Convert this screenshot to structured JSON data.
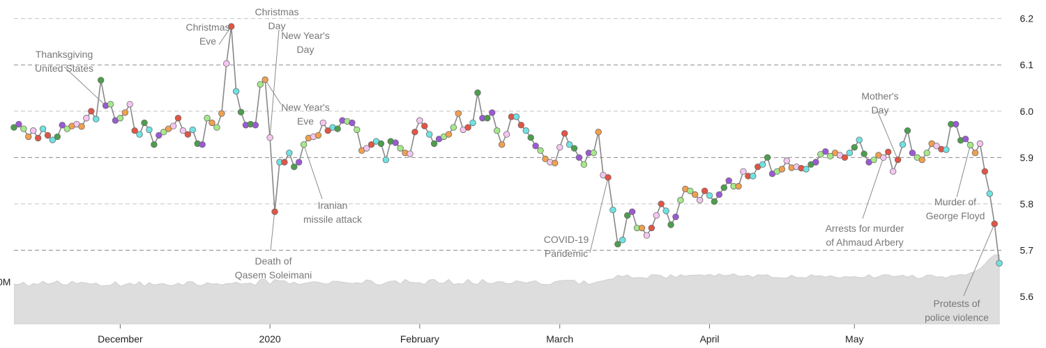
{
  "chart_data": {
    "type": "line",
    "y_ticks": [
      5.6,
      5.7,
      5.8,
      5.9,
      6.0,
      6.1,
      6.2
    ],
    "y_tick_labels": [
      "5.6",
      "5.7",
      "5.8",
      "5.9",
      "6.0",
      "6.1",
      "6.2"
    ],
    "ylim": [
      5.54,
      6.24
    ],
    "axis_fragment_label": "0M",
    "x_ticks": [
      {
        "date": "2019-12-01",
        "label": "December"
      },
      {
        "date": "2020-01-01",
        "label": "2020"
      },
      {
        "date": "2020-02-01",
        "label": "February"
      },
      {
        "date": "2020-03-01",
        "label": "March"
      },
      {
        "date": "2020-04-01",
        "label": "April"
      },
      {
        "date": "2020-05-01",
        "label": "May"
      }
    ],
    "xlim": [
      "2019-11-09",
      "2020-06-01"
    ],
    "grid": true,
    "line_color": "#888888",
    "area_color": "#dddddd",
    "point_colors": [
      "#4c9e4c",
      "#e05545",
      "#f0a050",
      "#9b59d6",
      "#6fe3e3",
      "#f5c6f0",
      "#a6e88a"
    ],
    "series": [
      {
        "x": [
          "2019-11-09",
          "2019-11-10",
          "2019-11-11",
          "2019-11-12",
          "2019-11-13",
          "2019-11-14",
          "2019-11-15",
          "2019-11-16",
          "2019-11-17",
          "2019-11-18",
          "2019-11-19",
          "2019-11-20",
          "2019-11-21",
          "2019-11-22",
          "2019-11-23",
          "2019-11-24",
          "2019-11-25",
          "2019-11-26",
          "2019-11-27",
          "2019-11-28",
          "2019-11-29",
          "2019-11-30",
          "2019-12-01",
          "2019-12-02",
          "2019-12-03",
          "2019-12-04",
          "2019-12-05",
          "2019-12-06",
          "2019-12-07",
          "2019-12-08",
          "2019-12-09",
          "2019-12-10",
          "2019-12-11",
          "2019-12-12",
          "2019-12-13",
          "2019-12-14",
          "2019-12-15",
          "2019-12-16",
          "2019-12-17",
          "2019-12-18",
          "2019-12-19",
          "2019-12-20",
          "2019-12-21",
          "2019-12-22",
          "2019-12-23",
          "2019-12-24",
          "2019-12-25",
          "2019-12-26",
          "2019-12-27",
          "2019-12-28",
          "2019-12-29",
          "2019-12-30",
          "2019-12-31",
          "2020-01-01",
          "2020-01-02",
          "2020-01-03",
          "2020-01-04",
          "2020-01-05",
          "2020-01-06",
          "2020-01-07",
          "2020-01-08",
          "2020-01-09",
          "2020-01-10",
          "2020-01-11",
          "2020-01-12",
          "2020-01-13",
          "2020-01-14",
          "2020-01-15",
          "2020-01-16",
          "2020-01-17",
          "2020-01-18",
          "2020-01-19",
          "2020-01-20",
          "2020-01-21",
          "2020-01-22",
          "2020-01-23",
          "2020-01-24",
          "2020-01-25",
          "2020-01-26",
          "2020-01-27",
          "2020-01-28",
          "2020-01-29",
          "2020-01-30",
          "2020-01-31",
          "2020-02-01",
          "2020-02-02",
          "2020-02-03",
          "2020-02-04",
          "2020-02-05",
          "2020-02-06",
          "2020-02-07",
          "2020-02-08",
          "2020-02-09",
          "2020-02-10",
          "2020-02-11",
          "2020-02-12",
          "2020-02-13",
          "2020-02-14",
          "2020-02-15",
          "2020-02-16",
          "2020-02-17",
          "2020-02-18",
          "2020-02-19",
          "2020-02-20",
          "2020-02-21",
          "2020-02-22",
          "2020-02-23",
          "2020-02-24",
          "2020-02-25",
          "2020-02-26",
          "2020-02-27",
          "2020-02-28",
          "2020-02-29",
          "2020-03-01",
          "2020-03-02",
          "2020-03-03",
          "2020-03-04",
          "2020-03-05",
          "2020-03-06",
          "2020-03-07",
          "2020-03-08",
          "2020-03-09",
          "2020-03-10",
          "2020-03-11",
          "2020-03-12",
          "2020-03-13",
          "2020-03-14",
          "2020-03-15",
          "2020-03-16",
          "2020-03-17",
          "2020-03-18",
          "2020-03-19",
          "2020-03-20",
          "2020-03-21",
          "2020-03-22",
          "2020-03-23",
          "2020-03-24",
          "2020-03-25",
          "2020-03-26",
          "2020-03-27",
          "2020-03-28",
          "2020-03-29",
          "2020-03-30",
          "2020-03-31",
          "2020-04-01",
          "2020-04-02",
          "2020-04-03",
          "2020-04-04",
          "2020-04-05",
          "2020-04-06",
          "2020-04-07",
          "2020-04-08",
          "2020-04-09",
          "2020-04-10",
          "2020-04-11",
          "2020-04-12",
          "2020-04-13",
          "2020-04-14",
          "2020-04-15",
          "2020-04-16",
          "2020-04-17",
          "2020-04-18",
          "2020-04-19",
          "2020-04-20",
          "2020-04-21",
          "2020-04-22",
          "2020-04-23",
          "2020-04-24",
          "2020-04-25",
          "2020-04-26",
          "2020-04-27",
          "2020-04-28",
          "2020-04-29",
          "2020-04-30",
          "2020-05-01",
          "2020-05-02",
          "2020-05-03",
          "2020-05-04",
          "2020-05-05",
          "2020-05-06",
          "2020-05-07",
          "2020-05-08",
          "2020-05-09",
          "2020-05-10",
          "2020-05-11",
          "2020-05-12",
          "2020-05-13",
          "2020-05-14",
          "2020-05-15",
          "2020-05-16",
          "2020-05-17",
          "2020-05-18",
          "2020-05-19",
          "2020-05-20",
          "2020-05-21",
          "2020-05-22",
          "2020-05-23",
          "2020-05-24",
          "2020-05-25",
          "2020-05-26",
          "2020-05-27",
          "2020-05-28",
          "2020-05-29",
          "2020-05-30",
          "2020-05-31"
        ],
        "values": [
          5.965,
          5.972,
          5.962,
          5.945,
          5.958,
          5.942,
          5.962,
          5.948,
          5.938,
          5.945,
          5.97,
          5.962,
          5.968,
          5.972,
          5.967,
          5.985,
          6.0,
          5.983,
          6.067,
          6.012,
          6.015,
          5.98,
          5.985,
          5.997,
          6.015,
          5.958,
          5.95,
          5.975,
          5.96,
          5.928,
          5.948,
          5.955,
          5.962,
          5.968,
          5.985,
          5.958,
          5.95,
          5.96,
          5.93,
          5.928,
          5.985,
          5.975,
          5.965,
          5.995,
          6.103,
          6.183,
          6.043,
          5.998,
          5.97,
          5.972,
          5.97,
          6.058,
          6.068,
          5.943,
          5.783,
          5.89,
          5.89,
          5.91,
          5.88,
          5.89,
          5.928,
          5.942,
          5.945,
          5.948,
          5.975,
          5.958,
          5.965,
          5.962,
          5.98,
          5.978,
          5.975,
          5.96,
          5.915,
          5.92,
          5.928,
          5.935,
          5.93,
          5.895,
          5.935,
          5.932,
          5.92,
          5.91,
          5.908,
          5.955,
          5.98,
          5.968,
          5.95,
          5.93,
          5.94,
          5.945,
          5.95,
          5.965,
          5.995,
          5.96,
          5.965,
          5.975,
          6.04,
          5.985,
          5.985,
          5.997,
          5.958,
          5.928,
          5.95,
          5.988,
          5.988,
          5.97,
          5.958,
          5.943,
          5.925,
          5.915,
          5.897,
          5.89,
          5.888,
          5.922,
          5.952,
          5.928,
          5.92,
          5.9,
          5.885,
          5.91,
          5.91,
          5.955,
          5.862,
          5.857,
          5.787,
          5.713,
          5.722,
          5.775,
          5.783,
          5.748,
          5.748,
          5.732,
          5.748,
          5.775,
          5.8,
          5.785,
          5.755,
          5.772,
          5.808,
          5.832,
          5.828,
          5.82,
          5.808,
          5.828,
          5.818,
          5.805,
          5.82,
          5.835,
          5.85,
          5.838,
          5.838,
          5.87,
          5.86,
          5.86,
          5.88,
          5.885,
          5.9,
          5.865,
          5.87,
          5.875,
          5.893,
          5.878,
          5.88,
          5.877,
          5.875,
          5.885,
          5.89,
          5.907,
          5.913,
          5.903,
          5.91,
          5.905,
          5.9,
          5.91,
          5.922,
          5.938,
          5.908,
          5.89,
          5.895,
          5.905,
          5.9,
          5.912,
          5.87,
          5.895,
          5.928,
          5.958,
          5.91,
          5.9,
          5.895,
          5.91,
          5.93,
          5.925,
          5.918,
          5.917,
          5.972,
          5.972,
          5.937,
          5.94,
          5.927,
          5.91,
          5.93,
          5.87,
          5.822,
          5.757,
          5.672
        ]
      }
    ],
    "volume_area": {
      "x_start": "2019-11-09",
      "x_end": "2020-05-31",
      "values": [
        5.627,
        5.626,
        5.631,
        5.622,
        5.628,
        5.626,
        5.633,
        5.627,
        5.629,
        5.634,
        5.626,
        5.625,
        5.633,
        5.628,
        5.631,
        5.629,
        5.627,
        5.629,
        5.623,
        5.624,
        5.624,
        5.632,
        5.622,
        5.626,
        5.629,
        5.625,
        5.632,
        5.622,
        5.63,
        5.625,
        5.627,
        5.628,
        5.624,
        5.624,
        5.629,
        5.624,
        5.632,
        5.632,
        5.624,
        5.624,
        5.63,
        5.627,
        5.628,
        5.625,
        5.628,
        5.628,
        5.631,
        5.627,
        5.628,
        5.629,
        5.624,
        5.637,
        5.637,
        5.626,
        5.637,
        5.634,
        5.634,
        5.627,
        5.631,
        5.626,
        5.628,
        5.63,
        5.632,
        5.631,
        5.628,
        5.627,
        5.633,
        5.633,
        5.631,
        5.63,
        5.628,
        5.63,
        5.628,
        5.636,
        5.634,
        5.626,
        5.625,
        5.63,
        5.633,
        5.634,
        5.627,
        5.637,
        5.631,
        5.63,
        5.63,
        5.626,
        5.636,
        5.637,
        5.629,
        5.629,
        5.637,
        5.626,
        5.628,
        5.627,
        5.637,
        5.628,
        5.626,
        5.637,
        5.629,
        5.628,
        5.632,
        5.632,
        5.628,
        5.628,
        5.634,
        5.632,
        5.629,
        5.632,
        5.634,
        5.627,
        5.626,
        5.626,
        5.632,
        5.634,
        5.635,
        5.635,
        5.635,
        5.626,
        5.634,
        5.626,
        5.629,
        5.632,
        5.634,
        5.637,
        5.638,
        5.646,
        5.643,
        5.647,
        5.64,
        5.641,
        5.641,
        5.639,
        5.647,
        5.647,
        5.645,
        5.639,
        5.647,
        5.641,
        5.647,
        5.644,
        5.646,
        5.646,
        5.647,
        5.645,
        5.648,
        5.644,
        5.649,
        5.645,
        5.646,
        5.649,
        5.644,
        5.644,
        5.646,
        5.641,
        5.647,
        5.646,
        5.647,
        5.641,
        5.641,
        5.64,
        5.64,
        5.646,
        5.641,
        5.641,
        5.64,
        5.647,
        5.644,
        5.645,
        5.642,
        5.645,
        5.642,
        5.64,
        5.643,
        5.642,
        5.643,
        5.641,
        5.641,
        5.647,
        5.64,
        5.643,
        5.647,
        5.647,
        5.643,
        5.644,
        5.646,
        5.642,
        5.646,
        5.639,
        5.64,
        5.646,
        5.646,
        5.642,
        5.643,
        5.64,
        5.645,
        5.645,
        5.648,
        5.646,
        5.651,
        5.654,
        5.66,
        5.67,
        5.682,
        5.69,
        5.69
      ]
    },
    "annotations": [
      {
        "text": "Thanksgiving United States",
        "date": "2019-11-28",
        "lines": [
          "Thanksgiving",
          "United States"
        ]
      },
      {
        "text": "Christmas Eve",
        "date": "2019-12-24",
        "lines": [
          "Christmas",
          "Eve"
        ]
      },
      {
        "text": "Christmas Day",
        "date": "2019-12-25",
        "lines": [
          "Christmas",
          "Day"
        ]
      },
      {
        "text": "New Year's Day",
        "date": "2020-01-01",
        "lines": [
          "New Year's",
          "Day"
        ]
      },
      {
        "text": "New Year's Eve",
        "date": "2019-12-31",
        "lines": [
          "New Year's",
          "Eve"
        ]
      },
      {
        "text": "Iranian missile attack",
        "date": "2020-01-08",
        "lines": [
          "Iranian",
          "missile attack"
        ]
      },
      {
        "text": "Death of Qasem Soleimani",
        "date": "2020-01-03",
        "lines": [
          "Death of",
          "Qasem Soleimani"
        ]
      },
      {
        "text": "COVID-19 Pandemic",
        "date": "2020-03-11",
        "lines": [
          "COVID-19",
          "Pandemic"
        ]
      },
      {
        "text": "Mother's Day",
        "date": "2020-05-10",
        "lines": [
          "Mother's",
          "Day"
        ]
      },
      {
        "text": "Arrests for murder of Ahmaud Arbery",
        "date": "2020-05-07",
        "lines": [
          "Arrests for murder",
          "of Ahmaud Arbery"
        ]
      },
      {
        "text": "Murder of George Floyd",
        "date": "2020-05-25",
        "lines": [
          "Murder of",
          "George Floyd"
        ]
      },
      {
        "text": "Protests of police violence",
        "date": "2020-05-30",
        "lines": [
          "Protests of",
          "police violence"
        ]
      }
    ]
  }
}
